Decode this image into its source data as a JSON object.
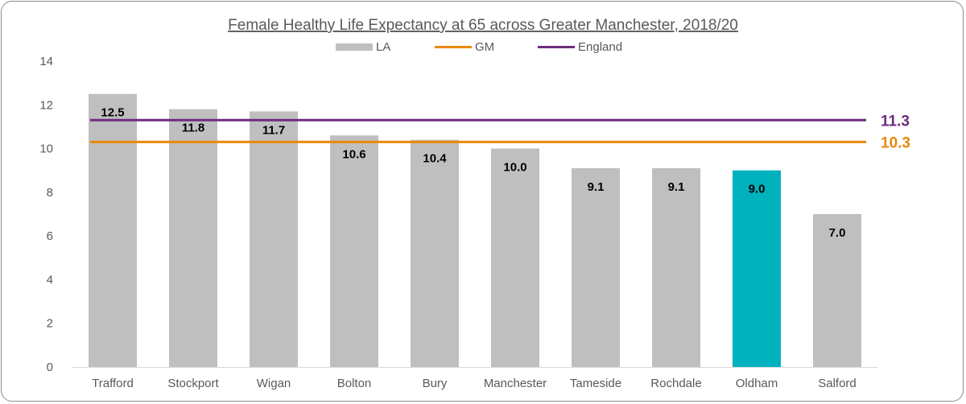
{
  "chart_data": {
    "type": "bar",
    "title": "Female Healthy Life Expectancy at 65 across Greater Manchester, 2018/20",
    "categories": [
      "Trafford",
      "Stockport",
      "Wigan",
      "Bolton",
      "Bury",
      "Manchester",
      "Tameside",
      "Rochdale",
      "Oldham",
      "Salford"
    ],
    "values": [
      12.5,
      11.8,
      11.7,
      10.6,
      10.4,
      10.0,
      9.1,
      9.1,
      9.0,
      7.0
    ],
    "value_labels": [
      "12.5",
      "11.8",
      "11.7",
      "10.6",
      "10.4",
      "10.0",
      "9.1",
      "9.1",
      "9.0",
      "7.0"
    ],
    "highlight_category": "Oldham",
    "series": [
      {
        "name": "LA",
        "type": "bar",
        "color": "#bfbfbf",
        "highlight_color": "#00b2bd"
      },
      {
        "name": "GM",
        "type": "line",
        "value": 10.3,
        "label": "10.3",
        "color": "#e8890c"
      },
      {
        "name": "England",
        "type": "line",
        "value": 11.3,
        "label": "11.3",
        "color": "#6e2c7e"
      }
    ],
    "ylim": [
      0,
      14
    ],
    "yticks": [
      "0",
      "2",
      "4",
      "6",
      "8",
      "10",
      "12",
      "14"
    ],
    "xlabel": "",
    "ylabel": "",
    "grid": false,
    "legend_position": "top"
  }
}
